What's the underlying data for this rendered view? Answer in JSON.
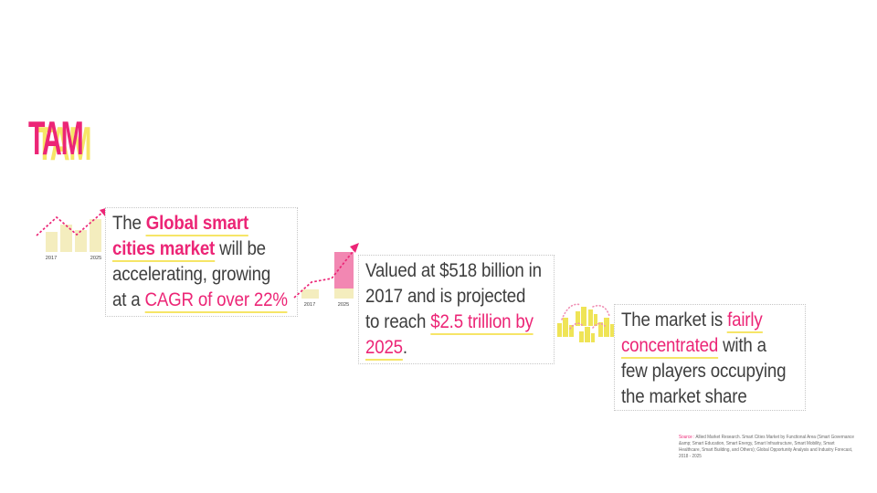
{
  "slide": {
    "title": "TAM",
    "blocks": [
      {
        "id": "growth",
        "icon": "bar-chart-trend-icon",
        "chart_labels": [
          "2017",
          "2025"
        ],
        "segments": [
          {
            "text": "The ",
            "style": "dark"
          },
          {
            "text": "Global smart\ncities market",
            "style": "pinkBoldU"
          },
          {
            "text": " will be\naccelerating, growing\nat a ",
            "style": "dark"
          },
          {
            "text": "CAGR of over 22%",
            "style": "pinkU"
          }
        ]
      },
      {
        "id": "valuation",
        "icon": "bar-comparison-trend-icon",
        "chart_labels": [
          "2017",
          "2025"
        ],
        "segments": [
          {
            "text": "Valued at $518 billion in\n2017 and is projected\nto reach ",
            "style": "dark"
          },
          {
            "text": "$2.5 trillion by\n2025",
            "style": "pinkU"
          },
          {
            "text": ".",
            "style": "dark"
          }
        ]
      },
      {
        "id": "concentration",
        "icon": "market-clusters-network-icon",
        "chart_labels": [],
        "segments": [
          {
            "text": "The market is ",
            "style": "dark"
          },
          {
            "text": "fairly\nconcentrated",
            "style": "pinkU"
          },
          {
            "text": " with a\nfew players occupying\nthe market share",
            "style": "dark"
          }
        ]
      }
    ],
    "source": {
      "segments": [
        {
          "text": "Source : ",
          "style": "pink"
        },
        {
          "text": "Allied Market Research. Smart Cities Market by Functional Area (Smart Governance &amp; Smart Education, Smart Energy, Smart Infrastructure, Smart Mobility, Smart Healthcare, Smart Building, and Others); Global Opportunity Analysis and Industry Forecast, 2018 - 2025",
          "style": "gray"
        }
      ]
    },
    "colors": {
      "pink": "#EC2576",
      "yellow_accent": "#F6E567",
      "pale_yellow": "#F4EDBE",
      "bar_pink": "#F287B2",
      "building_yellow": "#EFE456",
      "arc_pink": "#F08FB4",
      "text_dark": "#3E3E3E",
      "source_gray": "#6A6A6A",
      "border_gray": "#C6C6C6"
    }
  }
}
